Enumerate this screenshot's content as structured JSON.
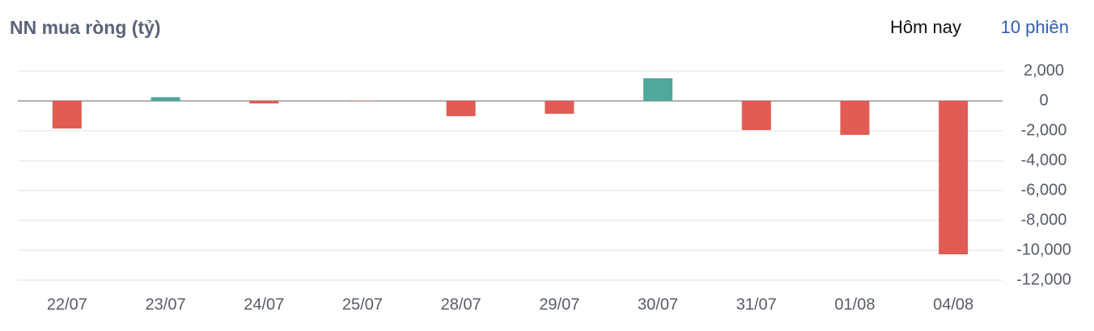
{
  "tabs": [
    "Hôm nay",
    "10 phiên"
  ],
  "chart_data": {
    "type": "bar",
    "title": "NN mua ròng (tỷ)",
    "categories": [
      "22/07",
      "23/07",
      "24/07",
      "25/07",
      "28/07",
      "29/07",
      "30/07",
      "31/07",
      "01/08",
      "04/08"
    ],
    "values": [
      -1850,
      250,
      -170,
      -20,
      -1020,
      -860,
      1520,
      -1950,
      -2270,
      -10270
    ],
    "positive_color": "#4fa89b",
    "negative_color": "#e05c54",
    "ylim": [
      -12000,
      2000
    ],
    "yticks": [
      {
        "value": 2000,
        "label": "2,000"
      },
      0,
      {
        "value": -2000,
        "label": "-2,000"
      },
      {
        "value": -4000,
        "label": "-4,000"
      },
      {
        "value": -6000,
        "label": "-6,000"
      },
      {
        "value": -8000,
        "label": "-8,000"
      },
      {
        "value": -10000,
        "label": "-10,000"
      },
      {
        "value": -12000,
        "label": "-12,000"
      }
    ],
    "grid": true
  }
}
